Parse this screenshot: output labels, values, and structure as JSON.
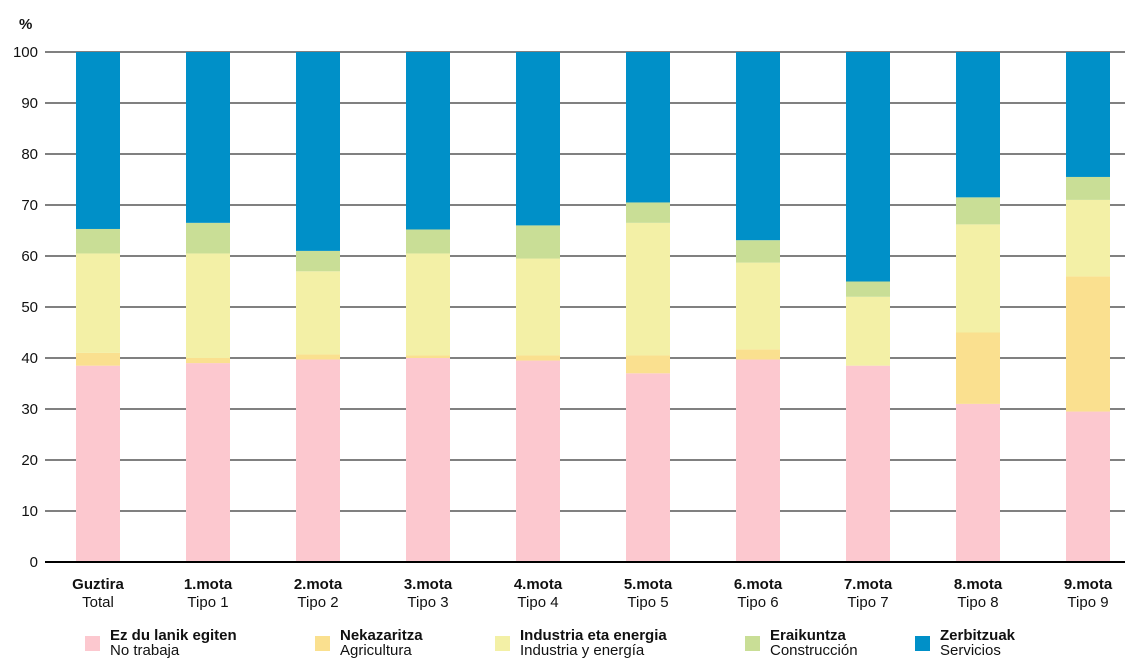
{
  "chart_data": {
    "type": "bar",
    "stacked": true,
    "ylabel": "%",
    "ylim": [
      0,
      100
    ],
    "yticks": [
      0,
      10,
      20,
      30,
      40,
      50,
      60,
      70,
      80,
      90,
      100
    ],
    "grid": true,
    "legend_position": "bottom",
    "categories": [
      {
        "eu": "Guztira",
        "es": "Total"
      },
      {
        "eu": "1.mota",
        "es": "Tipo 1"
      },
      {
        "eu": "2.mota",
        "es": "Tipo 2"
      },
      {
        "eu": "3.mota",
        "es": "Tipo 3"
      },
      {
        "eu": "4.mota",
        "es": "Tipo 4"
      },
      {
        "eu": "5.mota",
        "es": "Tipo 5"
      },
      {
        "eu": "6.mota",
        "es": "Tipo 6"
      },
      {
        "eu": "7.mota",
        "es": "Tipo 7"
      },
      {
        "eu": "8.mota",
        "es": "Tipo 8"
      },
      {
        "eu": "9.mota",
        "es": "Tipo 9"
      }
    ],
    "series": [
      {
        "name_eu": "Ez du lanik egiten",
        "name_es": "No trabaja",
        "color": "#fcc8cf",
        "values": [
          38.5,
          39.0,
          39.7,
          40.0,
          39.5,
          37.0,
          39.7,
          38.5,
          31.0,
          29.5
        ]
      },
      {
        "name_eu": "Nekazaritza",
        "name_es": "Agricultura",
        "color": "#fae08f",
        "values": [
          2.5,
          1.0,
          1.0,
          0.5,
          1.0,
          3.5,
          2.0,
          0.0,
          14.0,
          26.5
        ]
      },
      {
        "name_eu": "Industria eta energia",
        "name_es": "Industria y energía",
        "color": "#f3f0a6",
        "values": [
          19.5,
          20.5,
          16.3,
          20.0,
          19.0,
          26.0,
          17.0,
          13.5,
          21.2,
          15.0
        ]
      },
      {
        "name_eu": "Eraikuntza",
        "name_es": "Construcción",
        "color": "#c9de96",
        "values": [
          4.8,
          6.0,
          4.0,
          4.7,
          6.5,
          4.0,
          4.4,
          3.0,
          5.3,
          4.5
        ]
      },
      {
        "name_eu": "Zerbitzuak",
        "name_es": "Servicios",
        "color": "#0090c8",
        "values": [
          34.7,
          33.5,
          39.0,
          34.8,
          34.0,
          29.5,
          36.9,
          45.0,
          28.5,
          24.5
        ]
      }
    ]
  }
}
